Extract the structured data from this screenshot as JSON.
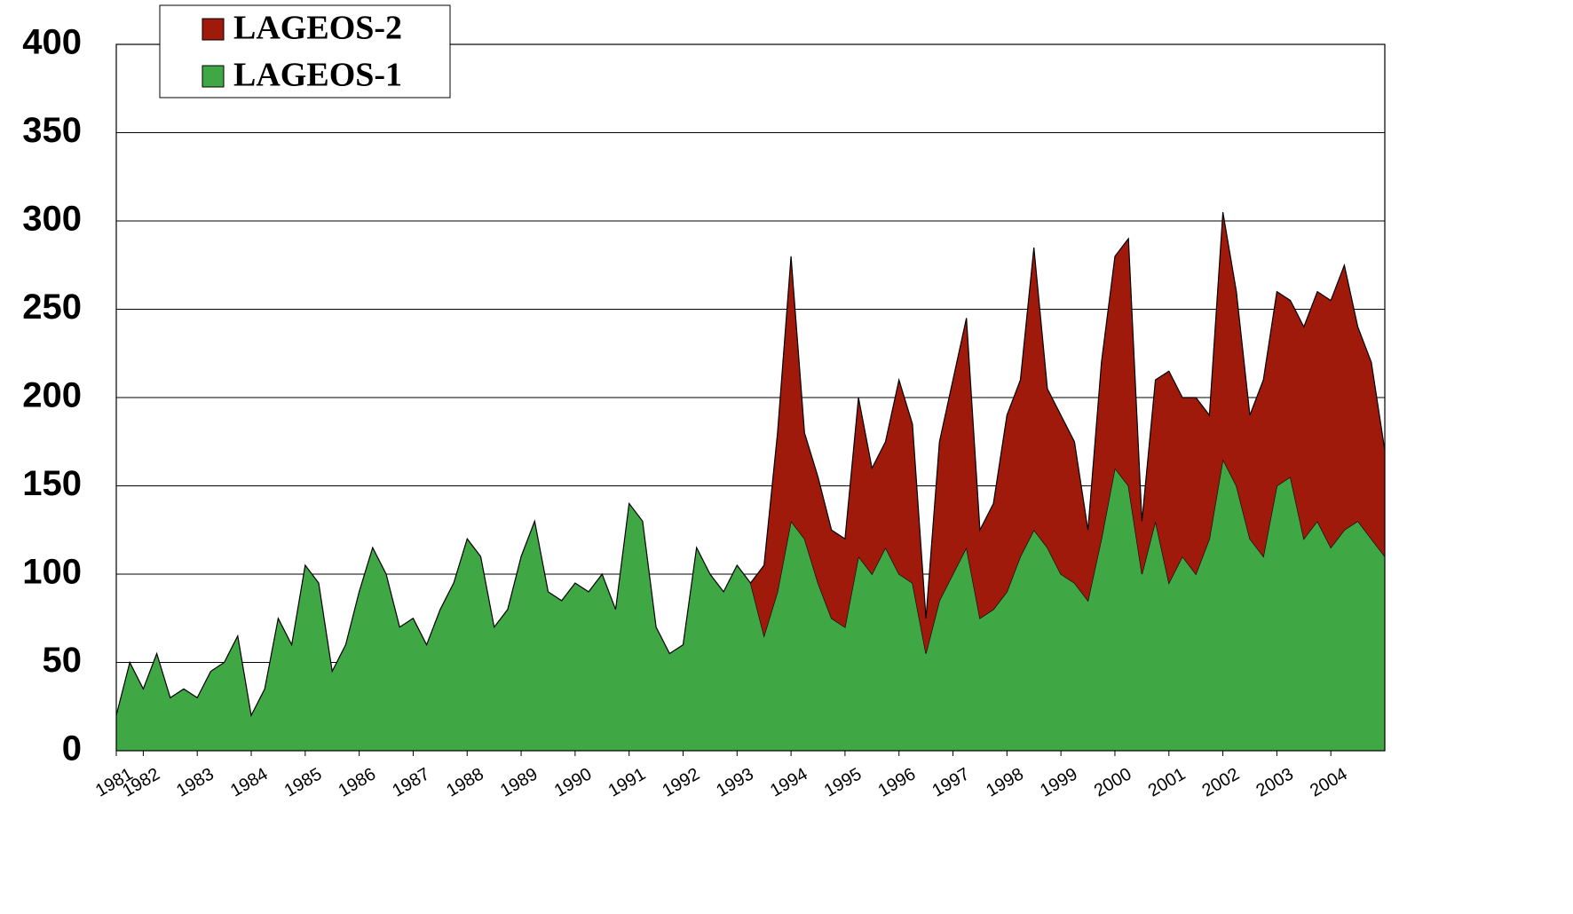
{
  "chart_data": {
    "type": "stacked_area",
    "x": [
      1981.5,
      1981.75,
      1982,
      1982.25,
      1982.5,
      1982.75,
      1983,
      1983.25,
      1983.5,
      1983.75,
      1984,
      1984.25,
      1984.5,
      1984.75,
      1985,
      1985.25,
      1985.5,
      1985.75,
      1986,
      1986.25,
      1986.5,
      1986.75,
      1987,
      1987.25,
      1987.5,
      1987.75,
      1988,
      1988.25,
      1988.5,
      1988.75,
      1989,
      1989.25,
      1989.5,
      1989.75,
      1990,
      1990.25,
      1990.5,
      1990.75,
      1991,
      1991.25,
      1991.5,
      1991.75,
      1992,
      1992.25,
      1992.5,
      1992.75,
      1993,
      1993.25,
      1993.5,
      1993.75,
      1994,
      1994.25,
      1994.5,
      1994.75,
      1995,
      1995.25,
      1995.5,
      1995.75,
      1996,
      1996.25,
      1996.5,
      1996.75,
      1997,
      1997.25,
      1997.5,
      1997.75,
      1998,
      1998.25,
      1998.5,
      1998.75,
      1999,
      1999.25,
      1999.5,
      1999.75,
      2000,
      2000.25,
      2000.5,
      2000.75,
      2001,
      2001.25,
      2001.5,
      2001.75,
      2002,
      2002.25,
      2002.5,
      2002.75,
      2003,
      2003.25,
      2003.5,
      2003.75,
      2004,
      2004.25,
      2004.5,
      2004.75,
      2005
    ],
    "series": [
      {
        "name": "LAGEOS-1",
        "color": "#3fa845",
        "values": [
          20,
          50,
          35,
          55,
          30,
          35,
          30,
          45,
          50,
          65,
          20,
          35,
          75,
          60,
          105,
          95,
          45,
          60,
          90,
          115,
          100,
          70,
          75,
          60,
          80,
          95,
          120,
          110,
          70,
          80,
          110,
          130,
          90,
          85,
          95,
          90,
          100,
          80,
          140,
          130,
          70,
          55,
          60,
          115,
          100,
          90,
          105,
          95,
          65,
          90,
          130,
          120,
          95,
          75,
          70,
          110,
          100,
          115,
          100,
          95,
          55,
          85,
          100,
          115,
          75,
          80,
          90,
          110,
          125,
          115,
          100,
          95,
          85,
          120,
          160,
          150,
          100,
          130,
          95,
          110,
          100,
          120,
          165,
          150,
          120,
          110,
          150,
          155,
          120,
          130,
          115,
          125,
          130,
          120,
          110
        ]
      },
      {
        "name": "LAGEOS-2",
        "color": "#a01a0c",
        "values": [
          null,
          null,
          null,
          null,
          null,
          null,
          null,
          null,
          null,
          null,
          null,
          null,
          null,
          null,
          null,
          null,
          null,
          null,
          null,
          null,
          null,
          null,
          null,
          null,
          null,
          null,
          null,
          null,
          null,
          null,
          null,
          null,
          null,
          null,
          null,
          null,
          null,
          null,
          null,
          null,
          null,
          null,
          null,
          null,
          null,
          null,
          null,
          0,
          40,
          90,
          150,
          60,
          60,
          50,
          50,
          90,
          60,
          60,
          110,
          90,
          20,
          90,
          110,
          130,
          50,
          60,
          100,
          100,
          160,
          90,
          90,
          80,
          40,
          100,
          120,
          140,
          30,
          80,
          120,
          90,
          100,
          70,
          140,
          110,
          70,
          100,
          110,
          100,
          120,
          130,
          140,
          150,
          110,
          100,
          60
        ]
      }
    ],
    "xlim": [
      1981.5,
      2005
    ],
    "xticks": [
      {
        "value": 1981.5,
        "label": "1981"
      },
      1982,
      1983,
      1984,
      1985,
      1986,
      1987,
      1988,
      1989,
      1990,
      1991,
      1992,
      1993,
      1994,
      1995,
      1996,
      1997,
      1998,
      1999,
      2000,
      2001,
      2002,
      2003,
      2004
    ],
    "ylim": [
      0,
      400
    ],
    "yticks": [
      0,
      50,
      100,
      150,
      200,
      250,
      300,
      350,
      400
    ],
    "grid": true,
    "legend": "upper left"
  }
}
